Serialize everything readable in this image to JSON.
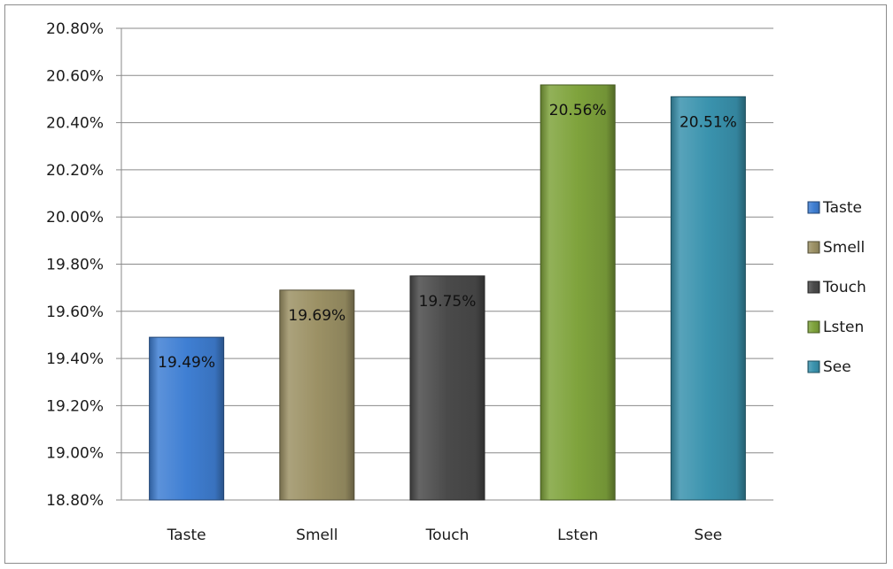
{
  "chart_data": {
    "type": "bar",
    "categories": [
      "Taste",
      "Smell",
      "Touch",
      "Lsten",
      "See"
    ],
    "values": [
      19.49,
      19.69,
      19.75,
      20.56,
      20.51
    ],
    "data_labels": [
      "19.49%",
      "19.69%",
      "19.75%",
      "20.56%",
      "20.51%"
    ],
    "colors": [
      "#3f7fd3",
      "#9c9165",
      "#4a4a4a",
      "#7fa33c",
      "#3a93ae"
    ],
    "ylim": [
      18.8,
      20.8
    ],
    "ytick_step": 0.2,
    "yticks": [
      "18.80%",
      "19.00%",
      "19.20%",
      "19.40%",
      "19.60%",
      "19.80%",
      "20.00%",
      "20.20%",
      "20.40%",
      "20.60%",
      "20.80%"
    ],
    "legend": [
      "Taste",
      "Smell",
      "Touch",
      "Lsten",
      "See"
    ],
    "legend_position": "right",
    "grid": true,
    "title": "",
    "xlabel": "",
    "ylabel": ""
  }
}
